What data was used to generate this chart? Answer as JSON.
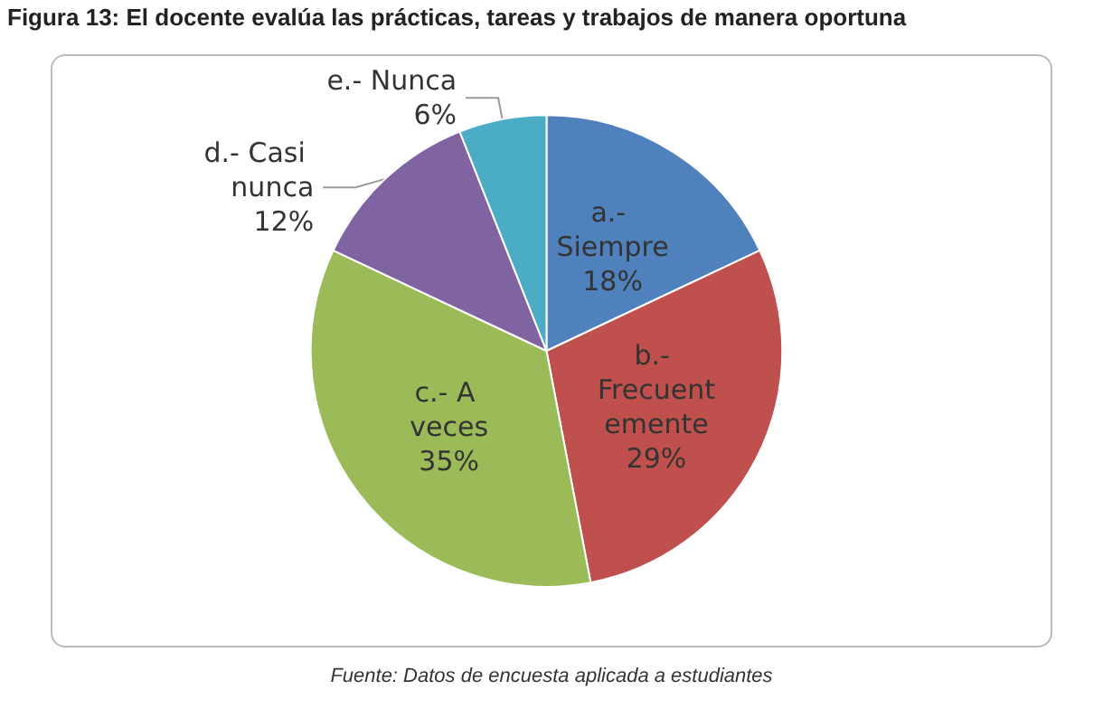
{
  "chart_data": {
    "type": "pie",
    "title": "Figura 13: El docente evalúa las prácticas, tareas y trabajos de manera oportuna",
    "categories": [
      "a.- Siempre",
      "b.- Frecuentemente",
      "c.- A veces",
      "d.- Casi nunca",
      "e.- Nunca"
    ],
    "values": [
      18,
      29,
      35,
      12,
      6
    ],
    "colors": [
      "#4f81bd",
      "#c0504d",
      "#9bbb59",
      "#8064a2",
      "#4bacc6"
    ],
    "value_labels": [
      "18%",
      "29%",
      "35%",
      "12%",
      "6%"
    ],
    "legend": false,
    "annotations": [
      "Fuente: Datos de encuesta aplicada a estudiantes"
    ]
  }
}
